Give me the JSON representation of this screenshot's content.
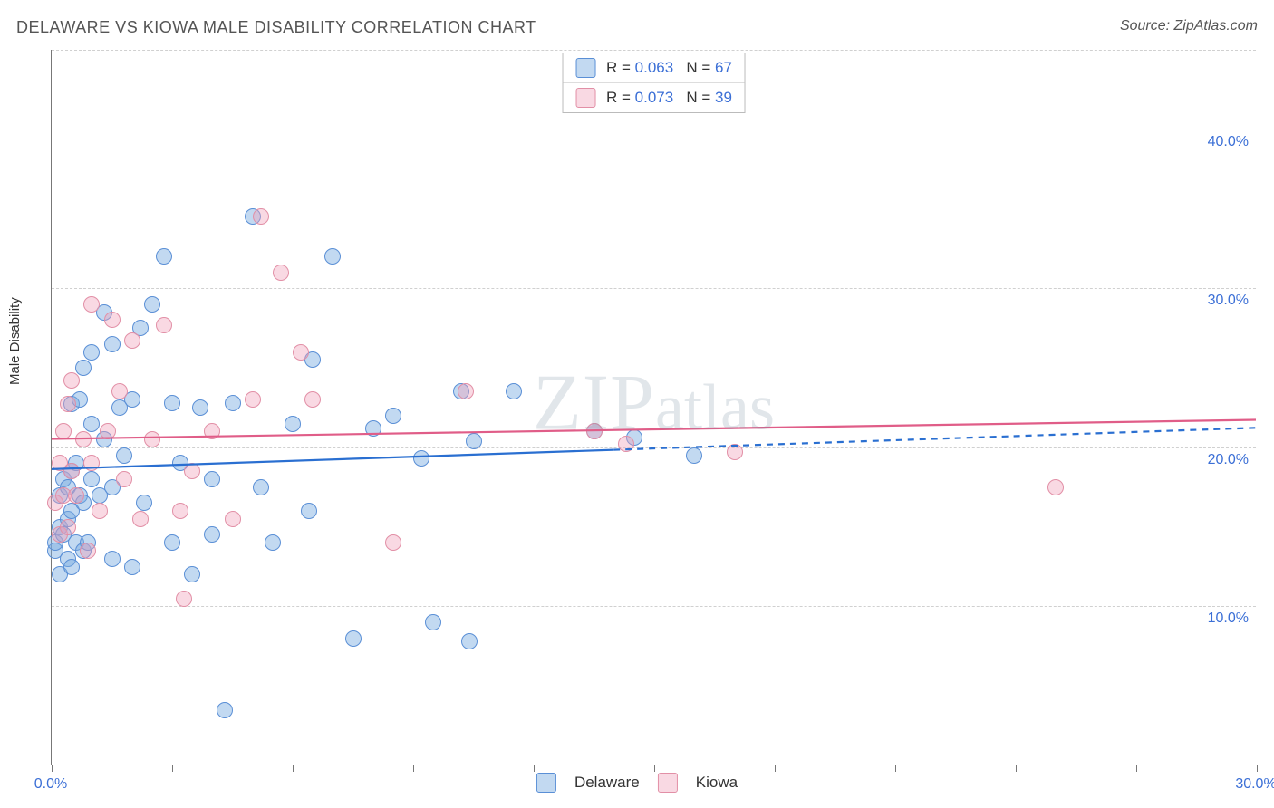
{
  "title": "DELAWARE VS KIOWA MALE DISABILITY CORRELATION CHART",
  "source_label": "Source: ZipAtlas.com",
  "y_axis_title": "Male Disability",
  "watermark_big": "ZIP",
  "watermark_small": "atlas",
  "chart": {
    "type": "scatter",
    "background_color": "#ffffff",
    "grid_color": "#d0d0d0",
    "axis_color": "#777777",
    "label_color": "#3b6fd6",
    "label_fontsize": 16,
    "xlim": [
      0,
      30
    ],
    "ylim": [
      0,
      45
    ],
    "x_ticks": [
      0,
      3,
      6,
      9,
      12,
      15,
      18,
      21,
      24,
      27,
      30
    ],
    "x_tick_labels": {
      "0": "0.0%",
      "30": "30.0%"
    },
    "y_gridlines": [
      10,
      20,
      30,
      40,
      45
    ],
    "y_tick_labels": {
      "10": "10.0%",
      "20": "20.0%",
      "30": "30.0%",
      "40": "40.0%"
    },
    "dot_radius": 9,
    "dot_border_width": 1.3,
    "dot_fill_opacity": 0.35
  },
  "series": [
    {
      "name": "Delaware",
      "color_stroke": "#5a8fd6",
      "color_fill": "rgba(120,170,225,0.45)",
      "trend_color": "#2a6fd1",
      "trend_width": 2.2,
      "R": "0.063",
      "N": "67",
      "trend": {
        "y_at_x0": 18.6,
        "y_at_xmax": 21.2,
        "solid_until_x": 14
      },
      "points": [
        [
          0.1,
          13.5
        ],
        [
          0.1,
          14.0
        ],
        [
          0.2,
          12.0
        ],
        [
          0.2,
          15.0
        ],
        [
          0.2,
          17.0
        ],
        [
          0.3,
          14.5
        ],
        [
          0.3,
          18.0
        ],
        [
          0.4,
          13.0
        ],
        [
          0.4,
          15.5
        ],
        [
          0.4,
          17.5
        ],
        [
          0.5,
          12.5
        ],
        [
          0.5,
          16.0
        ],
        [
          0.5,
          18.5
        ],
        [
          0.5,
          22.7
        ],
        [
          0.6,
          14.0
        ],
        [
          0.6,
          19.0
        ],
        [
          0.7,
          17.0
        ],
        [
          0.7,
          23.0
        ],
        [
          0.8,
          13.5
        ],
        [
          0.8,
          16.5
        ],
        [
          0.8,
          25.0
        ],
        [
          0.9,
          14.0
        ],
        [
          1.0,
          18.0
        ],
        [
          1.0,
          21.5
        ],
        [
          1.0,
          26.0
        ],
        [
          1.2,
          17.0
        ],
        [
          1.3,
          20.5
        ],
        [
          1.3,
          28.5
        ],
        [
          1.5,
          13.0
        ],
        [
          1.5,
          17.5
        ],
        [
          1.5,
          26.5
        ],
        [
          1.7,
          22.5
        ],
        [
          1.8,
          19.5
        ],
        [
          2.0,
          12.5
        ],
        [
          2.0,
          23.0
        ],
        [
          2.2,
          27.5
        ],
        [
          2.3,
          16.5
        ],
        [
          2.5,
          29.0
        ],
        [
          2.8,
          32.0
        ],
        [
          3.0,
          14.0
        ],
        [
          3.0,
          22.8
        ],
        [
          3.2,
          19.0
        ],
        [
          3.5,
          12.0
        ],
        [
          3.7,
          22.5
        ],
        [
          4.0,
          14.5
        ],
        [
          4.3,
          3.5
        ],
        [
          4.5,
          22.8
        ],
        [
          5.0,
          34.5
        ],
        [
          5.2,
          17.5
        ],
        [
          5.5,
          14.0
        ],
        [
          6.0,
          21.5
        ],
        [
          6.5,
          25.5
        ],
        [
          7.0,
          32.0
        ],
        [
          7.5,
          8.0
        ],
        [
          8.0,
          21.2
        ],
        [
          8.5,
          22.0
        ],
        [
          9.2,
          19.3
        ],
        [
          9.5,
          9.0
        ],
        [
          10.2,
          23.5
        ],
        [
          10.4,
          7.8
        ],
        [
          10.5,
          20.4
        ],
        [
          11.5,
          23.5
        ],
        [
          14.5,
          20.6
        ],
        [
          16.0,
          19.5
        ],
        [
          13.5,
          21.0
        ],
        [
          6.4,
          16.0
        ],
        [
          4.0,
          18.0
        ]
      ]
    },
    {
      "name": "Kiowa",
      "color_stroke": "#e28fa6",
      "color_fill": "rgba(240,160,185,0.40)",
      "trend_color": "#e05d88",
      "trend_width": 2.2,
      "R": "0.073",
      "N": "39",
      "trend": {
        "y_at_x0": 20.5,
        "y_at_xmax": 21.7,
        "solid_until_x": 30
      },
      "points": [
        [
          0.1,
          16.5
        ],
        [
          0.2,
          14.5
        ],
        [
          0.2,
          19.0
        ],
        [
          0.3,
          17.0
        ],
        [
          0.3,
          21.0
        ],
        [
          0.4,
          15.0
        ],
        [
          0.4,
          22.7
        ],
        [
          0.5,
          18.5
        ],
        [
          0.5,
          24.2
        ],
        [
          0.6,
          17.0
        ],
        [
          0.8,
          20.5
        ],
        [
          0.9,
          13.5
        ],
        [
          1.0,
          19.0
        ],
        [
          1.0,
          29.0
        ],
        [
          1.2,
          16.0
        ],
        [
          1.4,
          21.0
        ],
        [
          1.5,
          28.0
        ],
        [
          1.7,
          23.5
        ],
        [
          1.8,
          18.0
        ],
        [
          2.0,
          26.7
        ],
        [
          2.2,
          15.5
        ],
        [
          2.5,
          20.5
        ],
        [
          2.8,
          27.7
        ],
        [
          3.2,
          16.0
        ],
        [
          3.3,
          10.5
        ],
        [
          3.5,
          18.5
        ],
        [
          4.0,
          21.0
        ],
        [
          4.5,
          15.5
        ],
        [
          5.0,
          23.0
        ],
        [
          5.2,
          34.5
        ],
        [
          5.7,
          31.0
        ],
        [
          6.2,
          26.0
        ],
        [
          6.5,
          23.0
        ],
        [
          8.5,
          14.0
        ],
        [
          10.3,
          23.5
        ],
        [
          13.5,
          21.0
        ],
        [
          14.3,
          20.2
        ],
        [
          17.0,
          19.7
        ],
        [
          25.0,
          17.5
        ]
      ]
    }
  ],
  "bottom_legend": [
    {
      "label": "Delaware",
      "stroke": "#5a8fd6",
      "fill": "rgba(120,170,225,0.45)"
    },
    {
      "label": "Kiowa",
      "stroke": "#e28fa6",
      "fill": "rgba(240,160,185,0.40)"
    }
  ]
}
